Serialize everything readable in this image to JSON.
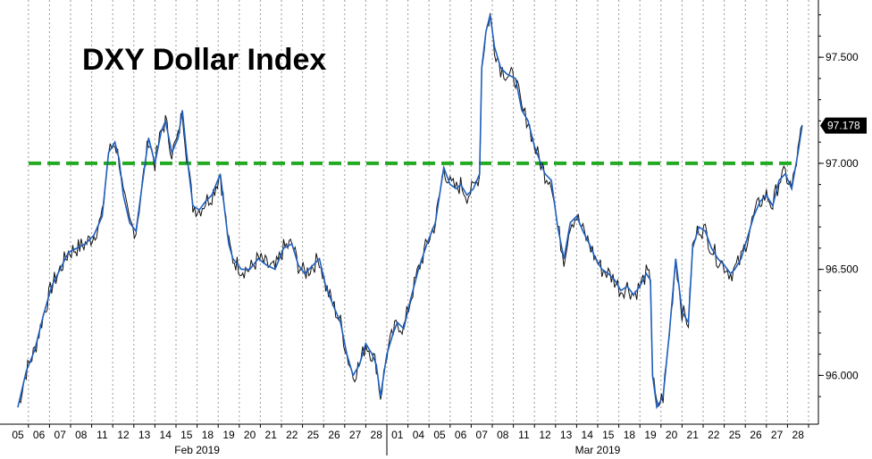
{
  "chart_data": {
    "type": "line",
    "title": "DXY Dollar Index",
    "xlabel": "",
    "ylabel": "",
    "ylim": [
      95.77,
      97.77
    ],
    "y_ticks": [
      96.0,
      96.5,
      97.0,
      97.5
    ],
    "y_tick_labels": [
      "96.000",
      "96.500",
      "97.000",
      "97.500"
    ],
    "y_axis_position": "right",
    "grid": "vertical dashed",
    "x_ticks": [
      "05",
      "06",
      "07",
      "08",
      "11",
      "12",
      "13",
      "14",
      "15",
      "18",
      "19",
      "20",
      "21",
      "22",
      "25",
      "26",
      "27",
      "28",
      "01",
      "04",
      "05",
      "06",
      "07",
      "08",
      "11",
      "12",
      "13",
      "14",
      "15",
      "18",
      "19",
      "20",
      "21",
      "22",
      "25",
      "26",
      "27",
      "28"
    ],
    "month_labels": [
      {
        "label": "Feb 2019",
        "start_index": 0
      },
      {
        "label": "Mar 2019",
        "start_index": 18
      }
    ],
    "reference_line": {
      "value": 97.0,
      "color": "#22aa22",
      "style": "dashed"
    },
    "last_value": {
      "value": 97.178,
      "label": "97.178"
    },
    "series": [
      {
        "color": "#1f5fbf",
        "points": [
          [
            0.0,
            95.85
          ],
          [
            0.4,
            96.02
          ],
          [
            0.8,
            96.12
          ],
          [
            1.2,
            96.28
          ],
          [
            1.6,
            96.42
          ],
          [
            2.0,
            96.5
          ],
          [
            2.4,
            96.58
          ],
          [
            2.8,
            96.6
          ],
          [
            3.2,
            96.62
          ],
          [
            3.6,
            96.66
          ],
          [
            4.0,
            96.75
          ],
          [
            4.3,
            97.05
          ],
          [
            4.6,
            97.1
          ],
          [
            4.8,
            97.02
          ],
          [
            5.0,
            96.85
          ],
          [
            5.3,
            96.72
          ],
          [
            5.6,
            96.68
          ],
          [
            5.9,
            96.9
          ],
          [
            6.2,
            97.12
          ],
          [
            6.5,
            97.0
          ],
          [
            6.8,
            97.15
          ],
          [
            7.0,
            97.2
          ],
          [
            7.3,
            97.05
          ],
          [
            7.6,
            97.12
          ],
          [
            7.8,
            97.25
          ],
          [
            8.0,
            97.05
          ],
          [
            8.3,
            96.8
          ],
          [
            8.6,
            96.78
          ],
          [
            8.9,
            96.82
          ],
          [
            9.2,
            96.85
          ],
          [
            9.6,
            96.95
          ],
          [
            10.0,
            96.62
          ],
          [
            10.2,
            96.55
          ],
          [
            10.6,
            96.5
          ],
          [
            11.0,
            96.5
          ],
          [
            11.4,
            96.55
          ],
          [
            11.8,
            96.52
          ],
          [
            12.2,
            96.5
          ],
          [
            12.6,
            96.6
          ],
          [
            13.0,
            96.62
          ],
          [
            13.3,
            96.52
          ],
          [
            13.6,
            96.48
          ],
          [
            14.0,
            96.52
          ],
          [
            14.3,
            96.55
          ],
          [
            14.6,
            96.42
          ],
          [
            15.0,
            96.32
          ],
          [
            15.3,
            96.25
          ],
          [
            15.6,
            96.1
          ],
          [
            15.9,
            96.0
          ],
          [
            16.2,
            96.05
          ],
          [
            16.5,
            96.15
          ],
          [
            16.8,
            96.1
          ],
          [
            17.0,
            96.05
          ],
          [
            17.2,
            95.9
          ],
          [
            17.5,
            96.1
          ],
          [
            17.8,
            96.2
          ],
          [
            18.0,
            96.25
          ],
          [
            18.3,
            96.22
          ],
          [
            18.6,
            96.35
          ],
          [
            19.0,
            96.5
          ],
          [
            19.4,
            96.62
          ],
          [
            19.8,
            96.72
          ],
          [
            20.0,
            96.85
          ],
          [
            20.2,
            96.98
          ],
          [
            20.5,
            96.9
          ],
          [
            20.8,
            96.88
          ],
          [
            21.0,
            96.9
          ],
          [
            21.3,
            96.85
          ],
          [
            21.6,
            96.88
          ],
          [
            21.9,
            96.95
          ],
          [
            22.0,
            97.45
          ],
          [
            22.2,
            97.62
          ],
          [
            22.4,
            97.7
          ],
          [
            22.6,
            97.55
          ],
          [
            22.9,
            97.45
          ],
          [
            23.2,
            97.42
          ],
          [
            23.6,
            97.4
          ],
          [
            23.9,
            97.25
          ],
          [
            24.2,
            97.2
          ],
          [
            24.5,
            97.08
          ],
          [
            24.8,
            97.0
          ],
          [
            25.0,
            96.95
          ],
          [
            25.3,
            96.92
          ],
          [
            25.6,
            96.7
          ],
          [
            25.9,
            96.55
          ],
          [
            26.2,
            96.72
          ],
          [
            26.5,
            96.75
          ],
          [
            26.8,
            96.68
          ],
          [
            27.1,
            96.62
          ],
          [
            27.4,
            96.55
          ],
          [
            27.7,
            96.5
          ],
          [
            28.0,
            96.48
          ],
          [
            28.3,
            96.45
          ],
          [
            28.6,
            96.4
          ],
          [
            28.9,
            96.42
          ],
          [
            29.2,
            96.38
          ],
          [
            29.5,
            96.42
          ],
          [
            29.8,
            96.48
          ],
          [
            30.0,
            96.45
          ],
          [
            30.1,
            96.0
          ],
          [
            30.3,
            95.85
          ],
          [
            30.6,
            95.9
          ],
          [
            30.9,
            96.2
          ],
          [
            31.2,
            96.55
          ],
          [
            31.5,
            96.3
          ],
          [
            31.8,
            96.25
          ],
          [
            32.0,
            96.6
          ],
          [
            32.3,
            96.7
          ],
          [
            32.6,
            96.68
          ],
          [
            32.9,
            96.6
          ],
          [
            33.2,
            96.55
          ],
          [
            33.5,
            96.52
          ],
          [
            33.8,
            96.48
          ],
          [
            34.0,
            96.5
          ],
          [
            34.3,
            96.55
          ],
          [
            34.6,
            96.65
          ],
          [
            34.9,
            96.75
          ],
          [
            35.2,
            96.82
          ],
          [
            35.5,
            96.85
          ],
          [
            35.8,
            96.8
          ],
          [
            36.1,
            96.92
          ],
          [
            36.4,
            96.95
          ],
          [
            36.7,
            96.88
          ],
          [
            37.0,
            97.05
          ],
          [
            37.2,
            97.18
          ]
        ]
      }
    ]
  }
}
